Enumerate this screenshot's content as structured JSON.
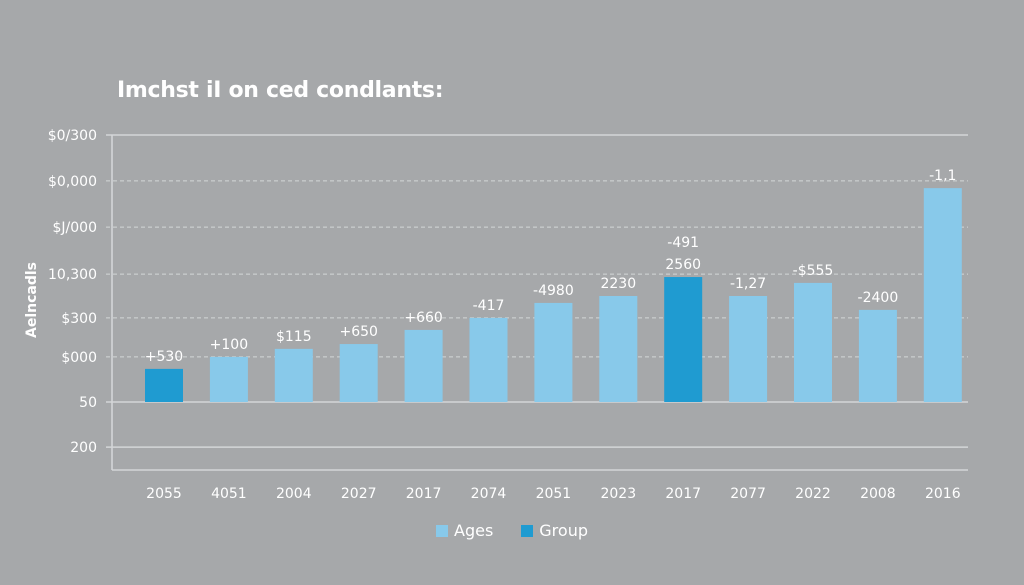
{
  "chart_data": {
    "type": "bar",
    "title": "Imchst iI on ced condlants:",
    "xlabel": "",
    "ylabel": "Aelncadls",
    "y_scale_note": "values expressed in axis-fraction units: baseline tick '50' = 0, top tick '$0/300' = 100",
    "ylim": [
      -25,
      100
    ],
    "grid": true,
    "y_ticks": [
      {
        "label": "$0/300",
        "value": 100,
        "style": "solid"
      },
      {
        "label": "$0,000",
        "value": 82.8,
        "style": "dashed"
      },
      {
        "label": "$J/000",
        "value": 65.5,
        "style": "dashed"
      },
      {
        "label": "10,300",
        "value": 47.9,
        "style": "dashed"
      },
      {
        "label": "$300",
        "value": 31.5,
        "style": "dashed"
      },
      {
        "label": "$000",
        "value": 16.9,
        "style": "dashed"
      },
      {
        "label": "50",
        "value": 0,
        "style": "solid"
      },
      {
        "label": "200",
        "value": -16.9,
        "style": "solid"
      }
    ],
    "categories": [
      "2055",
      "4051",
      "2004",
      "2027",
      "2017",
      "2074",
      "2051",
      "2023",
      "2017",
      "2077",
      "2022",
      "2008",
      "2016"
    ],
    "values": [
      12.4,
      16.9,
      19.9,
      21.7,
      27.0,
      31.5,
      37.1,
      39.7,
      46.8,
      39.7,
      44.6,
      34.5,
      80.1
    ],
    "series_membership": [
      "Group",
      "Ages",
      "Ages",
      "Ages",
      "Ages",
      "Ages",
      "Ages",
      "Ages",
      "Group",
      "Ages",
      "Ages",
      "Ages",
      "Ages"
    ],
    "data_labels": [
      [
        "+530"
      ],
      [
        "+100"
      ],
      [
        "$115"
      ],
      [
        "+650"
      ],
      [
        "+660"
      ],
      [
        "-417"
      ],
      [
        "-4980"
      ],
      [
        "2230"
      ],
      [
        "-491",
        "2560"
      ],
      [
        "-1,27"
      ],
      [
        "-$555"
      ],
      [
        "-2400"
      ],
      [
        "-1,1"
      ]
    ],
    "legend": {
      "position": "bottom-center",
      "entries": [
        {
          "name": "Ages",
          "color": "#88c9ea"
        },
        {
          "name": "Group",
          "color": "#1f9bd1"
        }
      ]
    }
  },
  "colors": {
    "background": "#a6a8aa",
    "grid": "#d4d6d8",
    "text": "#ffffff"
  }
}
